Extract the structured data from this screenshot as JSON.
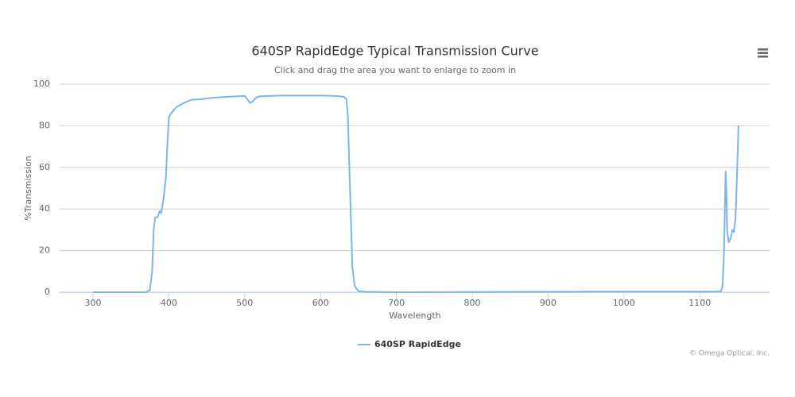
{
  "chart_data": {
    "type": "line",
    "title": "640SP RapidEdge Typical Transmission Curve",
    "subtitle": "Click and drag the area you want to enlarge to zoom in",
    "x_label": "Wavelength",
    "y_label": "%Transmission",
    "credits": "© Omega Optical, Inc.",
    "x": [
      300,
      370,
      375,
      378,
      380,
      382,
      385,
      388,
      390,
      393,
      396,
      398,
      400,
      403,
      410,
      420,
      430,
      440,
      460,
      480,
      500,
      503,
      507,
      510,
      515,
      520,
      550,
      600,
      620,
      630,
      634,
      636,
      638,
      640,
      642,
      645,
      650,
      660,
      700,
      880,
      1000,
      1120,
      1128,
      1130,
      1132,
      1134,
      1135,
      1136,
      1138,
      1141,
      1143,
      1145,
      1147,
      1149,
      1151
    ],
    "series": [
      {
        "name": "640SP RapidEdge",
        "color": "#7cb5ec",
        "values": [
          0,
          0,
          1,
          10,
          30,
          36,
          36,
          39,
          38,
          45,
          55,
          70,
          84,
          86,
          89,
          91,
          92.5,
          92.7,
          93.5,
          94,
          94.3,
          93,
          91,
          91.5,
          93.5,
          94.2,
          94.5,
          94.5,
          94.3,
          94,
          93,
          85,
          60,
          35,
          12,
          3,
          0.5,
          0.2,
          0,
          0.2,
          0.3,
          0.3,
          0.5,
          3,
          20,
          58,
          50,
          30,
          24,
          26,
          30,
          29,
          35,
          55,
          80
        ]
      }
    ],
    "xlim": [
      256,
      1192
    ],
    "xticks": [
      300,
      400,
      500,
      600,
      700,
      800,
      900,
      1000,
      1100
    ],
    "ylim": [
      0,
      100
    ],
    "yticks": [
      0,
      20,
      40,
      60,
      80,
      100
    ],
    "grid": true,
    "legend": "bottom"
  }
}
